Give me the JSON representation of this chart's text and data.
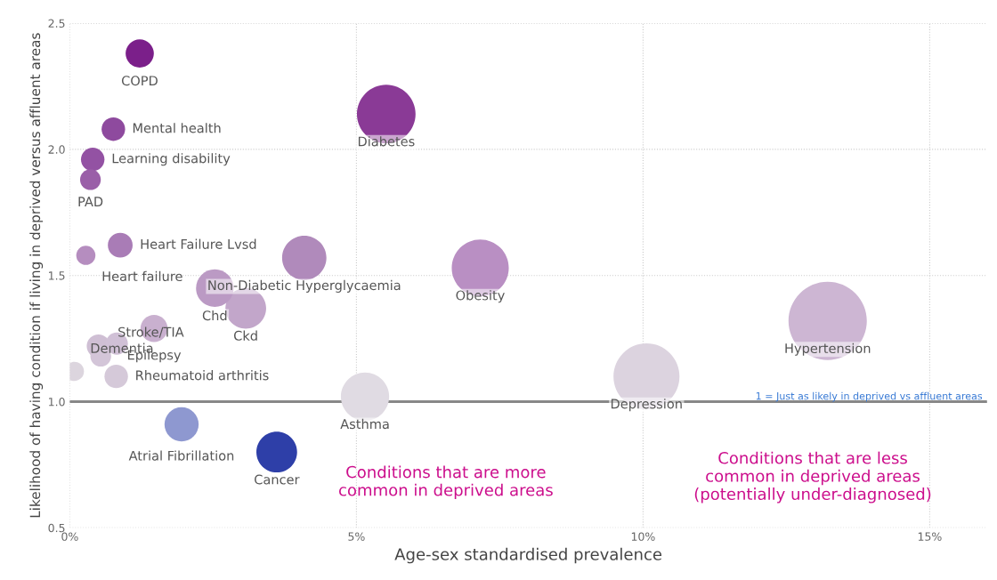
{
  "chart_data": {
    "type": "bubble",
    "xlabel": "Age-sex standardised prevalence",
    "ylabel": "Likelihood of having condition if living in deprived versus affluent areas",
    "xlim": [
      0,
      16
    ],
    "ylim": [
      0.5,
      2.5
    ],
    "xticks": [
      {
        "value": 0,
        "label": "0%"
      },
      {
        "value": 5,
        "label": "5%"
      },
      {
        "value": 10,
        "label": "10%"
      },
      {
        "value": 15,
        "label": "15%"
      }
    ],
    "yticks": [
      {
        "value": 0.5,
        "label": "0.5"
      },
      {
        "value": 1.0,
        "label": "1.0"
      },
      {
        "value": 1.5,
        "label": "1.5"
      },
      {
        "value": 2.0,
        "label": "2.0"
      },
      {
        "value": 2.5,
        "label": "2.5"
      }
    ],
    "grid": true,
    "series": [
      {
        "x": [
          1.22,
          0.76,
          0.4,
          0.36,
          0.28,
          0.88,
          5.52,
          4.09,
          2.53,
          3.07,
          7.16,
          13.22,
          1.47,
          0.5,
          0.54,
          0.82,
          0.08,
          0.81,
          10.06,
          5.15,
          1.95,
          3.61
        ],
        "values": [
          2.38,
          2.08,
          1.96,
          1.88,
          1.58,
          1.62,
          2.14,
          1.57,
          1.45,
          1.37,
          1.53,
          1.32,
          1.29,
          1.22,
          1.18,
          1.23,
          1.12,
          1.1,
          1.1,
          1.02,
          0.91,
          0.8
        ],
        "sizes": [
          0.13,
          0.09,
          0.09,
          0.07,
          0.06,
          0.1,
          0.56,
          0.32,
          0.23,
          0.27,
          0.53,
          1,
          0.12,
          0.09,
          0.07,
          0.08,
          0.06,
          0.09,
          0.71,
          0.38,
          0.19,
          0.27
        ],
        "colors": [
          "#7b1f8a",
          "#8e4a9e",
          "#9352a3",
          "#9a5fa8",
          "#b58dbf",
          "#a97cb6",
          "#8a3a96",
          "#b08abb",
          "#bb9ac4",
          "#c2a6ca",
          "#b98fc3",
          "#cdb6d3",
          "#c9b0cf",
          "#cfbfd4",
          "#d3c5d8",
          "#d0c0d6",
          "#dcd5de",
          "#d5c9d9",
          "#dcd3df",
          "#e0dbe3",
          "#8e98d0",
          "#2e3fa8"
        ]
      }
    ],
    "annotations": [
      {
        "text": "COPD",
        "x": 1.22,
        "y": 2.38
      },
      {
        "text": "Mental health",
        "x": 0.76,
        "y": 2.08
      },
      {
        "text": "Learning disability",
        "x": 0.4,
        "y": 1.96
      },
      {
        "text": "PAD",
        "x": 0.36,
        "y": 1.88
      },
      {
        "text": "Heart failure",
        "x": 0.28,
        "y": 1.58
      },
      {
        "text": "Heart Failure Lvsd",
        "x": 0.88,
        "y": 1.62
      },
      {
        "text": "Diabetes",
        "x": 5.52,
        "y": 2.14
      },
      {
        "text": "Non-Diabetic Hyperglycaemia",
        "x": 4.09,
        "y": 1.57
      },
      {
        "text": "Chd",
        "x": 2.53,
        "y": 1.45
      },
      {
        "text": "Ckd",
        "x": 3.07,
        "y": 1.37
      },
      {
        "text": "Obesity",
        "x": 7.16,
        "y": 1.53
      },
      {
        "text": "Hypertension",
        "x": 13.22,
        "y": 1.32
      },
      {
        "text": "Epilepsy",
        "x": 1.47,
        "y": 1.29
      },
      {
        "text": "Stroke/TIA",
        "x": 0.54,
        "y": 1.18
      },
      {
        "text": "Dementia",
        "x": 0.08,
        "y": 1.12
      },
      {
        "text": "Rheumatoid arthritis",
        "x": 0.81,
        "y": 1.1
      },
      {
        "text": "Depression",
        "x": 10.06,
        "y": 1.1
      },
      {
        "text": "Asthma",
        "x": 5.15,
        "y": 1.02
      },
      {
        "text": "Atrial Fibrillation",
        "x": 1.95,
        "y": 0.91
      },
      {
        "text": "Cancer",
        "x": 3.61,
        "y": 0.8
      },
      "Conditions that are more\ncommon in deprived areas",
      "Conditions that are less\ncommon in deprived areas\n(potentially under-diagnosed)"
    ],
    "ref_lines": [
      {
        "axis": "y",
        "value": 1.0,
        "label": "1 = Just as likely in deprived vs affluent areas",
        "color": "#888888"
      }
    ]
  }
}
